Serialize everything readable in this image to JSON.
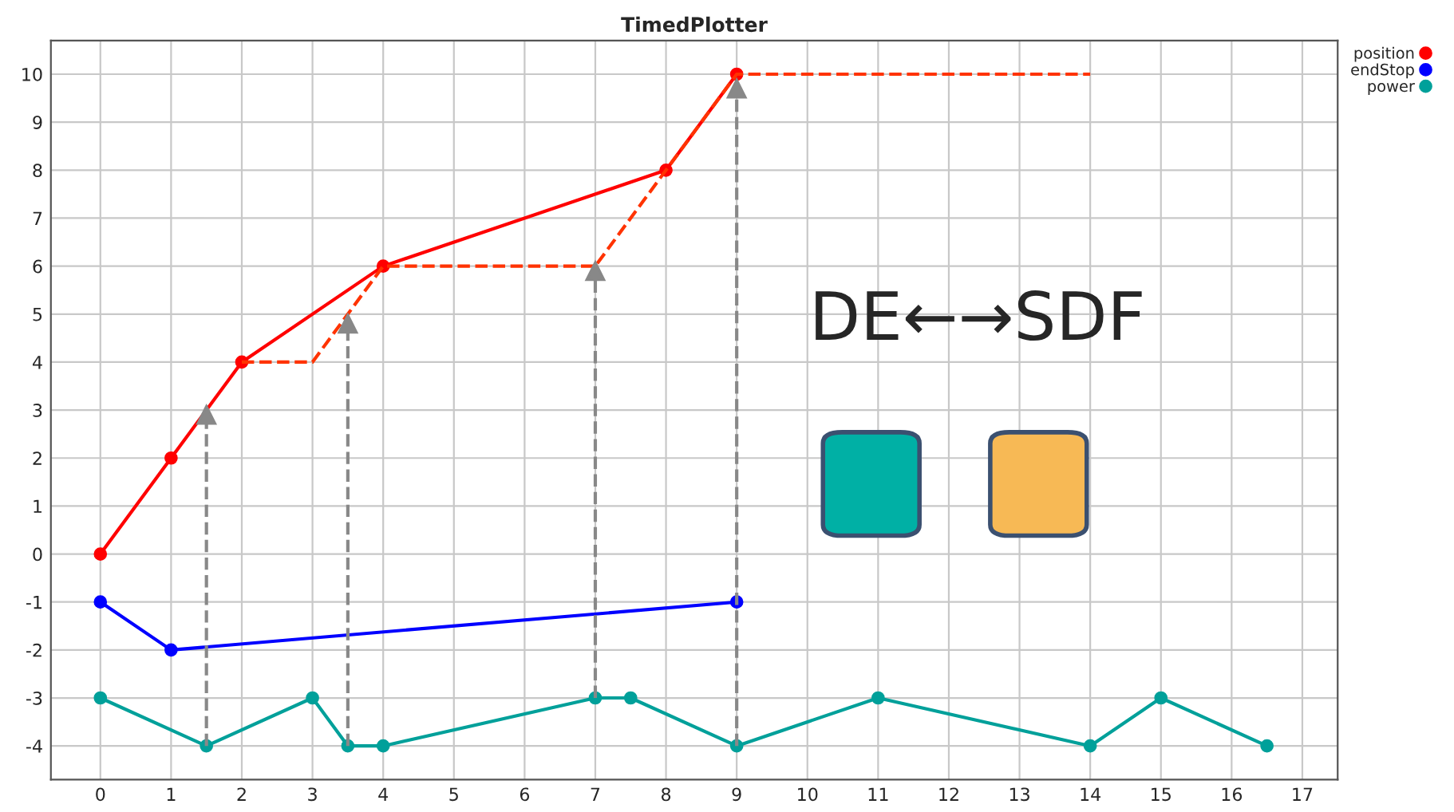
{
  "chart_data": {
    "type": "line",
    "title": "TimedPlotter",
    "series": [
      {
        "name": "position",
        "color": "#ff0000",
        "x": [
          0,
          1,
          2,
          4,
          8,
          9
        ],
        "values": [
          0,
          2,
          4,
          6,
          8,
          10
        ],
        "marker": "circle",
        "line_style": "solid"
      },
      {
        "color": "#ff3300",
        "x": [
          2,
          3,
          4,
          7,
          8,
          9,
          14
        ],
        "values": [
          4,
          4,
          6,
          6,
          8,
          10,
          10
        ],
        "marker": "none",
        "line_style": "dashed"
      },
      {
        "name": "endStop",
        "color": "#0000ff",
        "x": [
          0,
          1,
          9
        ],
        "values": [
          -1,
          -2,
          -1
        ],
        "marker": "circle",
        "line_style": "solid"
      },
      {
        "name": "power",
        "color": "#00a09a",
        "x": [
          0,
          1.5,
          3,
          3.5,
          4,
          7,
          7.5,
          9,
          11,
          14,
          15,
          16.5
        ],
        "values": [
          -3,
          -4,
          -3,
          -4,
          -4,
          -3,
          -3,
          -4,
          -3,
          -4,
          -3,
          -4
        ],
        "marker": "circle",
        "line_style": "solid"
      },
      {
        "color": "#888888",
        "x": [
          1.5,
          1.5
        ],
        "values": [
          -4,
          2.9
        ],
        "marker": "triangle",
        "line_style": "dashed"
      },
      {
        "color": "#888888",
        "x": [
          3.5,
          3.5
        ],
        "values": [
          -4,
          4.8
        ],
        "marker": "triangle",
        "line_style": "dashed"
      },
      {
        "color": "#888888",
        "x": [
          7,
          7
        ],
        "values": [
          -3,
          5.9
        ],
        "marker": "triangle",
        "line_style": "dashed"
      },
      {
        "color": "#888888",
        "x": [
          9,
          9
        ],
        "values": [
          -4,
          9.7
        ],
        "marker": "triangle",
        "line_style": "dashed"
      }
    ],
    "annotations": [
      "DE←→SDF"
    ],
    "xlim": [
      -0.7,
      17.5
    ],
    "xticks": [
      0,
      1,
      2,
      3,
      4,
      5,
      6,
      7,
      8,
      9,
      10,
      11,
      12,
      13,
      14,
      15,
      16,
      17
    ],
    "ylim": [
      -4.7,
      10.7
    ],
    "yticks": [
      -4,
      -3,
      -2,
      -1,
      0,
      1,
      2,
      3,
      4,
      5,
      6,
      7,
      8,
      9,
      10
    ],
    "grid": true,
    "legend": "top right"
  }
}
